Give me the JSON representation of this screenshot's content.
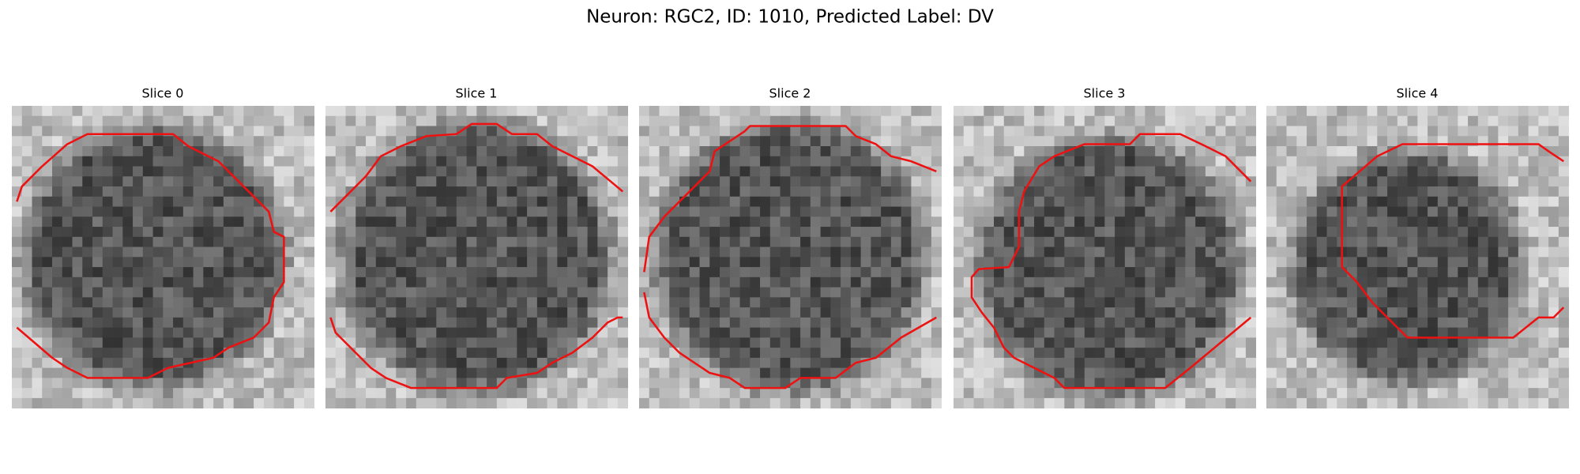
{
  "title": "Neuron: RGC2, ID: 1010, Predicted Label: DV",
  "panels": [
    {
      "title": "Slice 0"
    },
    {
      "title": "Slice 1"
    },
    {
      "title": "Slice 2"
    },
    {
      "title": "Slice 3"
    },
    {
      "title": "Slice 4"
    }
  ]
}
